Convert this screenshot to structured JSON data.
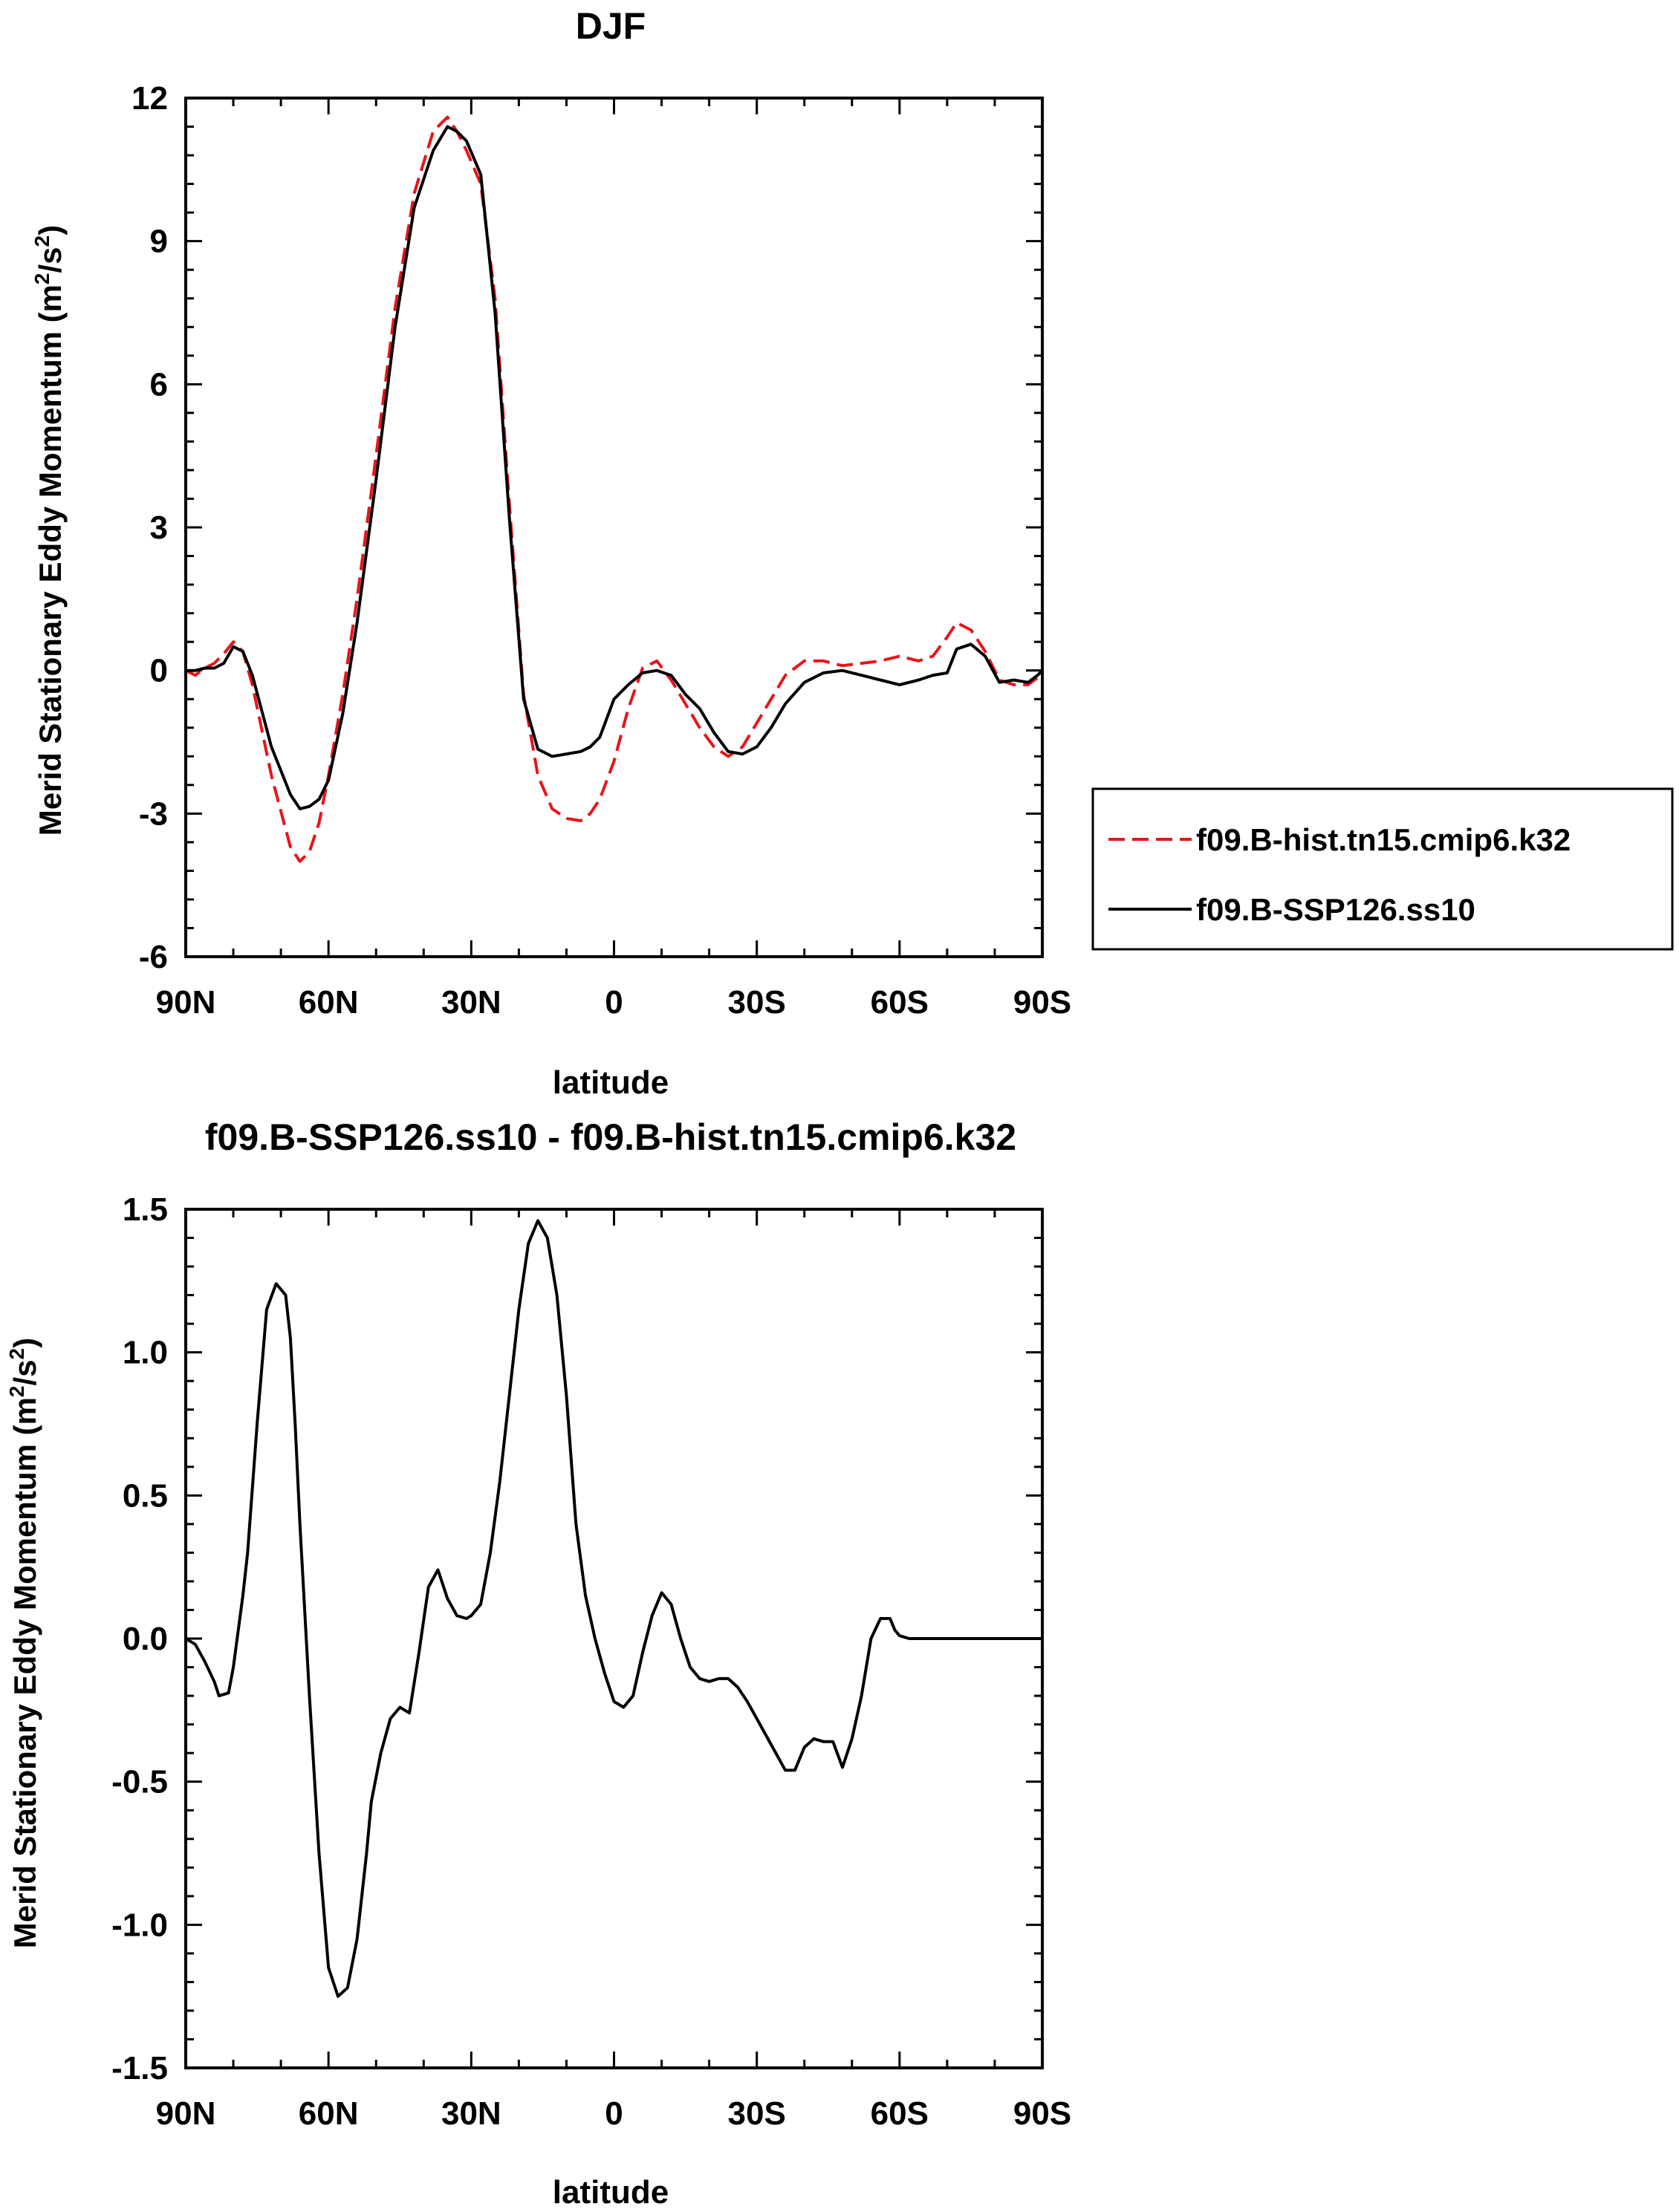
{
  "chart_data": [
    {
      "type": "line",
      "title": "DJF",
      "xlabel": "latitude",
      "ylabel": "Merid Stationary Eddy Momentum (m",
      "ylabel_sup1": "2",
      "ylabel_mid": "/s",
      "ylabel_sup2": "2",
      "ylabel_end": ")",
      "xlim": [
        90,
        -90
      ],
      "ylim": [
        -6,
        12
      ],
      "x_ticks": [
        90,
        60,
        30,
        0,
        -30,
        -60,
        -90
      ],
      "x_tick_labels": [
        "90N",
        "60N",
        "30N",
        "0",
        "30S",
        "60S",
        "90S"
      ],
      "y_ticks": [
        -6,
        -3,
        0,
        3,
        6,
        9,
        12
      ],
      "y_tick_labels": [
        "-6",
        "-3",
        "0",
        "3",
        "6",
        "9",
        "12"
      ],
      "legend_position": "right, outside plot",
      "series": [
        {
          "name": "f09.B-hist.tn15.cmip6.k32",
          "color": "#e8141b",
          "dash": "dashed",
          "x": [
            90,
            88,
            86,
            84,
            82,
            80,
            78,
            76,
            72,
            68,
            66,
            64,
            62,
            60,
            57,
            54,
            50,
            46,
            42,
            38,
            35,
            33,
            31,
            28,
            25,
            22,
            19,
            16,
            13,
            10,
            7,
            5,
            3,
            0,
            -3,
            -6,
            -9,
            -12,
            -15,
            -18,
            -21,
            -24,
            -27,
            -30,
            -33,
            -36,
            -40,
            -44,
            -48,
            -52,
            -56,
            -60,
            -64,
            -67,
            -70,
            -72,
            -75,
            -78,
            -81,
            -84,
            -87,
            -89,
            -90
          ],
          "y": [
            0,
            -0.1,
            0.05,
            0.15,
            0.35,
            0.6,
            0.4,
            -0.3,
            -2.2,
            -3.7,
            -4.0,
            -3.8,
            -3.2,
            -2.2,
            -0.5,
            1.5,
            4.5,
            7.6,
            10.0,
            11.3,
            11.6,
            11.3,
            10.9,
            10.2,
            7.8,
            3.5,
            -0.5,
            -2.2,
            -2.9,
            -3.1,
            -3.15,
            -3.0,
            -2.7,
            -1.9,
            -0.8,
            0.05,
            0.2,
            -0.2,
            -0.7,
            -1.2,
            -1.6,
            -1.8,
            -1.6,
            -1.1,
            -0.6,
            -0.1,
            0.2,
            0.2,
            0.1,
            0.15,
            0.2,
            0.3,
            0.2,
            0.3,
            0.7,
            1.0,
            0.85,
            0.4,
            -0.2,
            -0.3,
            -0.3,
            -0.15,
            0
          ]
        },
        {
          "name": "f09.B-SSP126.ss10",
          "color": "#000000",
          "dash": "solid",
          "x": [
            90,
            88,
            86,
            84,
            82,
            80,
            78,
            76,
            72,
            68,
            66,
            64,
            62,
            60,
            57,
            54,
            50,
            46,
            42,
            38,
            35,
            33,
            31,
            28,
            25,
            22,
            19,
            16,
            13,
            10,
            7,
            5,
            3,
            0,
            -3,
            -6,
            -9,
            -12,
            -15,
            -18,
            -21,
            -24,
            -27,
            -30,
            -33,
            -36,
            -40,
            -44,
            -48,
            -52,
            -56,
            -60,
            -64,
            -67,
            -70,
            -72,
            -75,
            -78,
            -81,
            -84,
            -87,
            -89,
            -90
          ],
          "y": [
            0,
            0,
            0.05,
            0.05,
            0.15,
            0.5,
            0.4,
            -0.1,
            -1.6,
            -2.6,
            -2.9,
            -2.85,
            -2.7,
            -2.3,
            -0.9,
            1.0,
            4.0,
            7.2,
            9.7,
            10.9,
            11.4,
            11.3,
            11.1,
            10.4,
            7.5,
            3.2,
            -0.6,
            -1.65,
            -1.8,
            -1.75,
            -1.7,
            -1.6,
            -1.4,
            -0.6,
            -0.3,
            -0.05,
            0,
            -0.1,
            -0.5,
            -0.8,
            -1.3,
            -1.7,
            -1.75,
            -1.6,
            -1.2,
            -0.7,
            -0.25,
            -0.05,
            0,
            -0.1,
            -0.2,
            -0.3,
            -0.2,
            -0.1,
            -0.05,
            0.45,
            0.55,
            0.3,
            -0.25,
            -0.2,
            -0.25,
            -0.1,
            0
          ]
        }
      ]
    },
    {
      "type": "line",
      "title": "f09.B-SSP126.ss10 - f09.B-hist.tn15.cmip6.k32",
      "xlabel": "latitude",
      "ylabel": "Merid Stationary Eddy Momentum (m",
      "ylabel_sup1": "2",
      "ylabel_mid": "/s",
      "ylabel_sup2": "2",
      "ylabel_end": ")",
      "xlim": [
        90,
        -90
      ],
      "ylim": [
        -1.5,
        1.5
      ],
      "x_ticks": [
        90,
        60,
        30,
        0,
        -30,
        -60,
        -90
      ],
      "x_tick_labels": [
        "90N",
        "60N",
        "30N",
        "0",
        "30S",
        "60S",
        "90S"
      ],
      "y_ticks": [
        -1.5,
        -1.0,
        -0.5,
        0.0,
        0.5,
        1.0,
        1.5
      ],
      "y_tick_labels": [
        "-1.5",
        "-1.0",
        "-0.5",
        "0.0",
        "0.5",
        "1.0",
        "1.5"
      ],
      "series": [
        {
          "color": "#000000",
          "dash": "solid",
          "x": [
            90,
            88,
            86,
            84,
            83,
            81,
            80,
            78,
            77,
            75,
            73,
            71,
            69,
            68,
            67,
            66,
            64,
            62,
            60,
            58,
            56,
            54,
            53,
            52,
            51,
            49,
            47,
            45,
            43,
            41,
            39,
            37,
            35,
            33,
            31,
            30,
            28,
            26,
            24,
            22,
            20,
            18,
            16,
            14,
            12,
            10,
            8,
            6,
            4,
            2,
            0,
            -2,
            -4,
            -6,
            -8,
            -10,
            -12,
            -14,
            -16,
            -18,
            -20,
            -22,
            -24,
            -26,
            -28,
            -30,
            -32,
            -34,
            -36,
            -38,
            -40,
            -42,
            -44,
            -46,
            -48,
            -50,
            -52,
            -54,
            -56,
            -58,
            -59,
            -60,
            -62,
            -64,
            -66,
            -68,
            -70,
            -72,
            -73,
            -75,
            -77,
            -79,
            -81,
            -83,
            -85,
            -87,
            -88,
            -89,
            -90
          ],
          "y": [
            0,
            -0.02,
            -0.08,
            -0.15,
            -0.2,
            -0.19,
            -0.1,
            0.15,
            0.3,
            0.75,
            1.15,
            1.24,
            1.2,
            1.05,
            0.75,
            0.4,
            -0.2,
            -0.75,
            -1.15,
            -1.25,
            -1.22,
            -1.05,
            -0.9,
            -0.75,
            -0.57,
            -0.4,
            -0.28,
            -0.24,
            -0.26,
            -0.05,
            0.18,
            0.24,
            0.14,
            0.08,
            0.07,
            0.08,
            0.12,
            0.3,
            0.55,
            0.85,
            1.15,
            1.38,
            1.46,
            1.4,
            1.2,
            0.85,
            0.4,
            0.15,
            0.0,
            -0.12,
            -0.22,
            -0.24,
            -0.2,
            -0.05,
            0.08,
            0.16,
            0.12,
            0.0,
            -0.1,
            -0.14,
            -0.15,
            -0.14,
            -0.14,
            -0.17,
            -0.22,
            -0.28,
            -0.34,
            -0.4,
            -0.46,
            -0.46,
            -0.38,
            -0.35,
            -0.36,
            -0.36,
            -0.45,
            -0.35,
            -0.2,
            0.0,
            0.07,
            0.07,
            0.03,
            0.01,
            0.0,
            0.0,
            0.0,
            0.0,
            0.0,
            0.0,
            0.0,
            0.0,
            0.0,
            0.0,
            0.0,
            0.0,
            0.0,
            0.0,
            0.0,
            0.0,
            0.0
          ]
        }
      ]
    }
  ]
}
